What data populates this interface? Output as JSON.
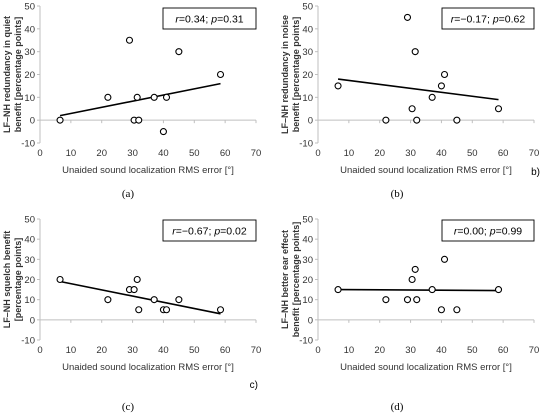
{
  "chart_data": [
    {
      "type": "scatter",
      "panel": "(a)",
      "xlabel": "Unaided sound localization RMS error [°]",
      "ylabel": [
        "LF–NH redundancy in quiet",
        "benefit [percentage points]"
      ],
      "xlim": [
        0,
        70
      ],
      "ylim": [
        -10,
        50
      ],
      "xticks": [
        0,
        10,
        20,
        30,
        40,
        50,
        60,
        70
      ],
      "yticks": [
        -10,
        0,
        10,
        20,
        30,
        40,
        50
      ],
      "stat_label": "r=0.34; p=0.31",
      "x": [
        6.5,
        22,
        29,
        30.5,
        31.5,
        32,
        37,
        40,
        41,
        45,
        58.5
      ],
      "y": [
        0,
        10,
        35,
        0,
        10,
        0,
        10,
        -5,
        10,
        30,
        20
      ],
      "trendline": {
        "x": [
          6.5,
          58.5
        ],
        "y": [
          2,
          16
        ]
      },
      "grid": false
    },
    {
      "type": "scatter",
      "panel": "(b)",
      "sub_label": "b)",
      "xlabel": "Unaided sound localization RMS error [°]",
      "ylabel": [
        "LF–NH redundancy in noise",
        "benefit [percentage points]"
      ],
      "xlim": [
        0,
        70
      ],
      "ylim": [
        -10,
        50
      ],
      "xticks": [
        0,
        10,
        20,
        30,
        40,
        50,
        60,
        70
      ],
      "yticks": [
        -10,
        0,
        10,
        20,
        30,
        40,
        50
      ],
      "stat_label": "r=−0.17; p=0.62",
      "x": [
        6.5,
        22,
        29,
        30.5,
        31.5,
        32,
        37,
        40,
        41,
        45,
        58.5
      ],
      "y": [
        15,
        0,
        45,
        5,
        30,
        0,
        10,
        15,
        20,
        0,
        5
      ],
      "trendline": {
        "x": [
          6.5,
          58.5
        ],
        "y": [
          18,
          9
        ]
      },
      "grid": false
    },
    {
      "type": "scatter",
      "panel": "(c)",
      "sub_label": "c)",
      "xlabel": "Unaided sound localization RMS error [°]",
      "ylabel": [
        "LF–NH squelch benefit",
        "[percentage points]"
      ],
      "xlim": [
        0,
        70
      ],
      "ylim": [
        -10,
        50
      ],
      "xticks": [
        0,
        10,
        20,
        30,
        40,
        50,
        60,
        70
      ],
      "yticks": [
        -10,
        0,
        10,
        20,
        30,
        40,
        50
      ],
      "stat_label": "r=−0.67; p=0.02",
      "x": [
        6.5,
        22,
        29,
        30.5,
        31.5,
        32,
        37,
        40,
        41,
        45,
        58.5
      ],
      "y": [
        20,
        10,
        15,
        15,
        20,
        5,
        10,
        5,
        5,
        10,
        5
      ],
      "trendline": {
        "x": [
          6.5,
          58.5
        ],
        "y": [
          19,
          3
        ]
      },
      "grid": false
    },
    {
      "type": "scatter",
      "panel": "(d)",
      "xlabel": "Unaided sound localization RMS error [°]",
      "ylabel": [
        "LF–NH better ear effect",
        "benefit [percentage points]"
      ],
      "xlim": [
        0,
        70
      ],
      "ylim": [
        -10,
        50
      ],
      "xticks": [
        0,
        10,
        20,
        30,
        40,
        50,
        60,
        70
      ],
      "yticks": [
        -10,
        0,
        10,
        20,
        30,
        40,
        50
      ],
      "stat_label": "r=0.00; p=0.99",
      "x": [
        6.5,
        22,
        29,
        30.5,
        31.5,
        32,
        37,
        40,
        41,
        45,
        58.5
      ],
      "y": [
        15,
        10,
        10,
        20,
        25,
        10,
        15,
        5,
        30,
        5,
        15
      ],
      "trendline": {
        "x": [
          6.5,
          58.5
        ],
        "y": [
          15,
          14.5
        ]
      },
      "grid": false
    }
  ],
  "colors": {
    "axis": "#bfbfbf",
    "marker": "#000000",
    "trend": "#000000",
    "text": "#333333"
  }
}
